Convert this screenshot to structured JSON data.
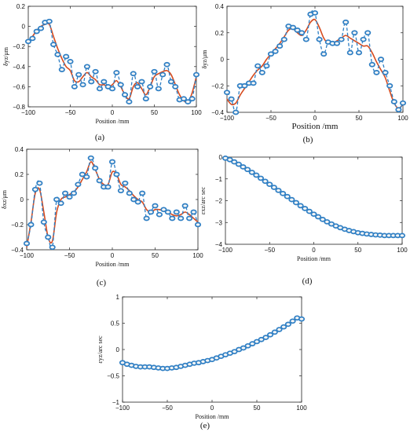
{
  "colors": {
    "measured": "#2f7fc4",
    "fitted": "#d64b1f",
    "marker_edge": "#2f7fc4"
  },
  "chart_data": [
    {
      "id": "a",
      "type": "line",
      "panel_label": "(a)",
      "xlabel": "Position /mm",
      "ylabel": "δyz/μm",
      "xlim": [
        -100,
        100
      ],
      "ylim": [
        -0.8,
        0.2
      ],
      "xticks": [
        -100,
        -50,
        0,
        50,
        100
      ],
      "yticks": [
        -0.8,
        -0.6,
        -0.4,
        -0.2,
        0,
        0.2
      ],
      "xtick_labels": [
        "−100",
        "−50",
        "0",
        "50",
        "100"
      ],
      "ytick_labels": [
        "−0.8",
        "−0.6",
        "−0.4",
        "−0.2",
        "0",
        "0.2"
      ],
      "series": [
        {
          "style": "measured",
          "marker": true,
          "x": [
            -100,
            -95,
            -90,
            -85,
            -80,
            -75,
            -70,
            -65,
            -60,
            -55,
            -50,
            -45,
            -40,
            -35,
            -30,
            -25,
            -20,
            -15,
            -10,
            -5,
            0,
            5,
            10,
            15,
            20,
            25,
            30,
            35,
            40,
            45,
            50,
            55,
            60,
            65,
            70,
            75,
            80,
            85,
            90,
            95,
            100
          ],
          "y": [
            -0.15,
            -0.12,
            -0.05,
            -0.02,
            0.04,
            0.05,
            -0.18,
            -0.28,
            -0.43,
            -0.3,
            -0.35,
            -0.6,
            -0.48,
            -0.58,
            -0.4,
            -0.55,
            -0.45,
            -0.62,
            -0.55,
            -0.6,
            -0.62,
            -0.46,
            -0.58,
            -0.68,
            -0.75,
            -0.47,
            -0.6,
            -0.55,
            -0.72,
            -0.6,
            -0.45,
            -0.62,
            -0.48,
            -0.38,
            -0.55,
            -0.6,
            -0.73,
            -0.72,
            -0.75,
            -0.72,
            -0.48
          ]
        },
        {
          "style": "fitted",
          "marker": false,
          "x": [
            -100,
            -95,
            -90,
            -85,
            -80,
            -75,
            -70,
            -65,
            -60,
            -55,
            -50,
            -45,
            -40,
            -35,
            -30,
            -25,
            -20,
            -15,
            -10,
            -5,
            0,
            5,
            10,
            15,
            20,
            25,
            30,
            35,
            40,
            45,
            50,
            55,
            60,
            65,
            70,
            75,
            80,
            85,
            90,
            95,
            100
          ],
          "y": [
            -0.15,
            -0.1,
            -0.04,
            0.0,
            0.02,
            0.02,
            -0.1,
            -0.22,
            -0.32,
            -0.4,
            -0.44,
            -0.54,
            -0.55,
            -0.5,
            -0.46,
            -0.5,
            -0.53,
            -0.58,
            -0.58,
            -0.6,
            -0.58,
            -0.54,
            -0.6,
            -0.68,
            -0.72,
            -0.6,
            -0.56,
            -0.62,
            -0.68,
            -0.6,
            -0.5,
            -0.47,
            -0.45,
            -0.44,
            -0.48,
            -0.58,
            -0.68,
            -0.74,
            -0.75,
            -0.66,
            -0.5
          ]
        }
      ]
    },
    {
      "id": "b",
      "type": "line",
      "panel_label": "(b)",
      "xlabel": "Position /mm",
      "ylabel": "δyz/μm",
      "xlim": [
        -100,
        100
      ],
      "ylim": [
        -0.4,
        0.4
      ],
      "xticks": [
        -100,
        -50,
        0,
        50,
        100
      ],
      "yticks": [
        -0.4,
        -0.2,
        0,
        0.2,
        0.4
      ],
      "xtick_labels": [
        "−100",
        "−50",
        "0",
        "50",
        "100"
      ],
      "ytick_labels": [
        "−0.4",
        "−0.2",
        "0",
        "0.2",
        "0.4"
      ],
      "series": [
        {
          "style": "measured",
          "marker": true,
          "x": [
            -100,
            -95,
            -90,
            -85,
            -80,
            -75,
            -70,
            -65,
            -60,
            -55,
            -50,
            -45,
            -40,
            -35,
            -30,
            -25,
            -20,
            -15,
            -10,
            -5,
            0,
            5,
            10,
            15,
            20,
            25,
            30,
            35,
            40,
            45,
            50,
            55,
            60,
            65,
            70,
            75,
            80,
            85,
            90,
            95,
            100
          ],
          "y": [
            -0.25,
            -0.3,
            -0.4,
            -0.2,
            -0.2,
            -0.18,
            -0.18,
            -0.05,
            -0.1,
            -0.05,
            0.04,
            0.06,
            0.1,
            0.15,
            0.25,
            0.24,
            0.22,
            0.2,
            0.15,
            0.34,
            0.35,
            0.15,
            0.04,
            0.13,
            0.12,
            0.12,
            0.15,
            0.28,
            0.05,
            0.2,
            0.05,
            0.15,
            0.2,
            -0.04,
            -0.1,
            0.0,
            -0.1,
            -0.2,
            -0.32,
            -0.38,
            -0.33
          ]
        },
        {
          "style": "fitted",
          "marker": false,
          "x": [
            -100,
            -95,
            -90,
            -85,
            -80,
            -75,
            -70,
            -65,
            -60,
            -55,
            -50,
            -45,
            -40,
            -35,
            -30,
            -25,
            -20,
            -15,
            -10,
            -5,
            0,
            5,
            10,
            15,
            20,
            25,
            30,
            35,
            40,
            45,
            50,
            55,
            60,
            65,
            70,
            75,
            80,
            85,
            90,
            95,
            100
          ],
          "y": [
            -0.3,
            -0.34,
            -0.33,
            -0.27,
            -0.22,
            -0.17,
            -0.12,
            -0.08,
            -0.05,
            0.0,
            0.04,
            0.08,
            0.12,
            0.17,
            0.22,
            0.23,
            0.2,
            0.18,
            0.22,
            0.28,
            0.3,
            0.24,
            0.16,
            0.12,
            0.12,
            0.14,
            0.16,
            0.18,
            0.16,
            0.14,
            0.12,
            0.1,
            0.1,
            0.05,
            -0.02,
            -0.08,
            -0.14,
            -0.24,
            -0.33,
            -0.37,
            -0.34
          ]
        }
      ]
    },
    {
      "id": "c",
      "type": "line",
      "panel_label": "(c)",
      "xlabel": "Position /mm",
      "ylabel": "δxz/μm",
      "xlim": [
        -100,
        100
      ],
      "ylim": [
        -0.4,
        0.4
      ],
      "xticks": [
        -100,
        -50,
        0,
        50,
        100
      ],
      "yticks": [
        -0.4,
        -0.2,
        0,
        0.2,
        0.4
      ],
      "xtick_labels": [
        "−100",
        "−50",
        "0",
        "50",
        "100"
      ],
      "ytick_labels": [
        "−0.4",
        "−0.2",
        "0",
        "0.2",
        "0.4"
      ],
      "series": [
        {
          "style": "measured",
          "marker": true,
          "x": [
            -100,
            -95,
            -90,
            -85,
            -80,
            -75,
            -70,
            -65,
            -60,
            -55,
            -50,
            -45,
            -40,
            -35,
            -30,
            -25,
            -20,
            -15,
            -10,
            -5,
            0,
            5,
            10,
            15,
            20,
            25,
            30,
            35,
            40,
            45,
            50,
            55,
            60,
            65,
            70,
            75,
            80,
            85,
            90,
            95,
            100
          ],
          "y": [
            -0.35,
            -0.2,
            0.08,
            0.13,
            -0.18,
            -0.3,
            -0.38,
            0.0,
            -0.03,
            0.05,
            0.02,
            0.05,
            0.12,
            0.2,
            0.18,
            0.33,
            0.25,
            0.15,
            0.1,
            0.1,
            0.3,
            0.2,
            0.07,
            0.13,
            0.05,
            0.0,
            -0.02,
            0.05,
            -0.15,
            -0.1,
            -0.05,
            -0.12,
            -0.08,
            -0.1,
            -0.15,
            -0.1,
            -0.15,
            -0.05,
            -0.15,
            -0.1,
            -0.2
          ]
        },
        {
          "style": "fitted",
          "marker": false,
          "x": [
            -100,
            -95,
            -90,
            -85,
            -80,
            -75,
            -70,
            -65,
            -60,
            -55,
            -50,
            -45,
            -40,
            -35,
            -30,
            -25,
            -20,
            -15,
            -10,
            -5,
            0,
            5,
            10,
            15,
            20,
            25,
            30,
            35,
            40,
            45,
            50,
            55,
            60,
            65,
            70,
            75,
            80,
            85,
            90,
            95,
            100
          ],
          "y": [
            -0.38,
            -0.18,
            0.05,
            0.08,
            -0.1,
            -0.3,
            -0.33,
            -0.1,
            0.0,
            0.02,
            0.04,
            0.06,
            0.1,
            0.16,
            0.22,
            0.3,
            0.24,
            0.16,
            0.12,
            0.12,
            0.22,
            0.2,
            0.12,
            0.1,
            0.07,
            0.03,
            0.0,
            -0.02,
            -0.08,
            -0.1,
            -0.08,
            -0.08,
            -0.09,
            -0.1,
            -0.12,
            -0.13,
            -0.12,
            -0.1,
            -0.12,
            -0.15,
            -0.18
          ]
        }
      ]
    },
    {
      "id": "d",
      "type": "line",
      "panel_label": "(d)",
      "xlabel": "Position /mm",
      "ylabel": "εxz/arc sec",
      "xlim": [
        -100,
        100
      ],
      "ylim": [
        -4,
        0
      ],
      "xticks": [
        -100,
        -50,
        0,
        50,
        100
      ],
      "yticks": [
        -4,
        -3,
        -2,
        -1,
        0
      ],
      "xtick_labels": [
        "−100",
        "−50",
        "0",
        "50",
        "100"
      ],
      "ytick_labels": [
        "−4",
        "−3",
        "−2",
        "−1",
        "0"
      ],
      "series": [
        {
          "style": "measured",
          "marker": true,
          "x": [
            -100,
            -95,
            -90,
            -85,
            -80,
            -75,
            -70,
            -65,
            -60,
            -55,
            -50,
            -45,
            -40,
            -35,
            -30,
            -25,
            -20,
            -15,
            -10,
            -5,
            0,
            5,
            10,
            15,
            20,
            25,
            30,
            35,
            40,
            45,
            50,
            55,
            60,
            65,
            70,
            75,
            80,
            85,
            90,
            95,
            100
          ],
          "y": [
            -0.05,
            -0.12,
            -0.22,
            -0.33,
            -0.45,
            -0.57,
            -0.7,
            -0.83,
            -0.97,
            -1.11,
            -1.25,
            -1.39,
            -1.53,
            -1.67,
            -1.81,
            -1.95,
            -2.09,
            -2.23,
            -2.36,
            -2.49,
            -2.62,
            -2.74,
            -2.86,
            -2.97,
            -3.07,
            -3.16,
            -3.24,
            -3.31,
            -3.37,
            -3.42,
            -3.47,
            -3.5,
            -3.53,
            -3.55,
            -3.57,
            -3.58,
            -3.6,
            -3.6,
            -3.6,
            -3.6,
            -3.6
          ]
        },
        {
          "style": "fitted",
          "marker": false,
          "x": [
            -100,
            -95,
            -90,
            -85,
            -80,
            -75,
            -70,
            -65,
            -60,
            -55,
            -50,
            -45,
            -40,
            -35,
            -30,
            -25,
            -20,
            -15,
            -10,
            -5,
            0,
            5,
            10,
            15,
            20,
            25,
            30,
            35,
            40,
            45,
            50,
            55,
            60,
            65,
            70,
            75,
            80,
            85,
            90,
            95,
            100
          ],
          "y": [
            -0.05,
            -0.12,
            -0.22,
            -0.33,
            -0.45,
            -0.57,
            -0.7,
            -0.83,
            -0.97,
            -1.11,
            -1.25,
            -1.39,
            -1.53,
            -1.67,
            -1.81,
            -1.95,
            -2.09,
            -2.23,
            -2.36,
            -2.49,
            -2.62,
            -2.74,
            -2.86,
            -2.97,
            -3.07,
            -3.16,
            -3.24,
            -3.31,
            -3.37,
            -3.42,
            -3.47,
            -3.5,
            -3.53,
            -3.55,
            -3.57,
            -3.58,
            -3.6,
            -3.6,
            -3.6,
            -3.6,
            -3.6
          ]
        }
      ]
    },
    {
      "id": "e",
      "type": "line",
      "panel_label": "(e)",
      "xlabel": "Position /mm",
      "ylabel": "εyz/arc sec",
      "xlim": [
        -100,
        100
      ],
      "ylim": [
        -1,
        1
      ],
      "xticks": [
        -100,
        -50,
        0,
        50,
        100
      ],
      "yticks": [
        -1,
        -0.5,
        0,
        0.5,
        1
      ],
      "xtick_labels": [
        "−100",
        "−50",
        "0",
        "50",
        "100"
      ],
      "ytick_labels": [
        "−1",
        "−0.5",
        "0",
        "0.5",
        "1"
      ],
      "series": [
        {
          "style": "measured",
          "marker": true,
          "x": [
            -100,
            -95,
            -90,
            -85,
            -80,
            -75,
            -70,
            -65,
            -60,
            -55,
            -50,
            -45,
            -40,
            -35,
            -30,
            -25,
            -20,
            -15,
            -10,
            -5,
            0,
            5,
            10,
            15,
            20,
            25,
            30,
            35,
            40,
            45,
            50,
            55,
            60,
            65,
            70,
            75,
            80,
            85,
            90,
            95,
            100
          ],
          "y": [
            -0.25,
            -0.28,
            -0.3,
            -0.32,
            -0.33,
            -0.33,
            -0.33,
            -0.34,
            -0.35,
            -0.36,
            -0.36,
            -0.35,
            -0.34,
            -0.32,
            -0.3,
            -0.28,
            -0.26,
            -0.25,
            -0.23,
            -0.21,
            -0.19,
            -0.16,
            -0.13,
            -0.1,
            -0.07,
            -0.04,
            0.0,
            0.03,
            0.07,
            0.11,
            0.15,
            0.19,
            0.23,
            0.28,
            0.33,
            0.38,
            0.43,
            0.48,
            0.54,
            0.6,
            0.58
          ]
        },
        {
          "style": "fitted",
          "marker": false,
          "x": [
            -100,
            -95,
            -90,
            -85,
            -80,
            -75,
            -70,
            -65,
            -60,
            -55,
            -50,
            -45,
            -40,
            -35,
            -30,
            -25,
            -20,
            -15,
            -10,
            -5,
            0,
            5,
            10,
            15,
            20,
            25,
            30,
            35,
            40,
            45,
            50,
            55,
            60,
            65,
            70,
            75,
            80,
            85,
            90,
            95,
            100
          ],
          "y": [
            -0.25,
            -0.28,
            -0.3,
            -0.32,
            -0.33,
            -0.33,
            -0.34,
            -0.35,
            -0.35,
            -0.36,
            -0.36,
            -0.35,
            -0.34,
            -0.32,
            -0.3,
            -0.28,
            -0.26,
            -0.25,
            -0.23,
            -0.21,
            -0.19,
            -0.16,
            -0.13,
            -0.1,
            -0.07,
            -0.04,
            0.0,
            0.03,
            0.07,
            0.11,
            0.15,
            0.19,
            0.23,
            0.28,
            0.33,
            0.38,
            0.43,
            0.48,
            0.54,
            0.6,
            0.58
          ]
        }
      ]
    }
  ]
}
